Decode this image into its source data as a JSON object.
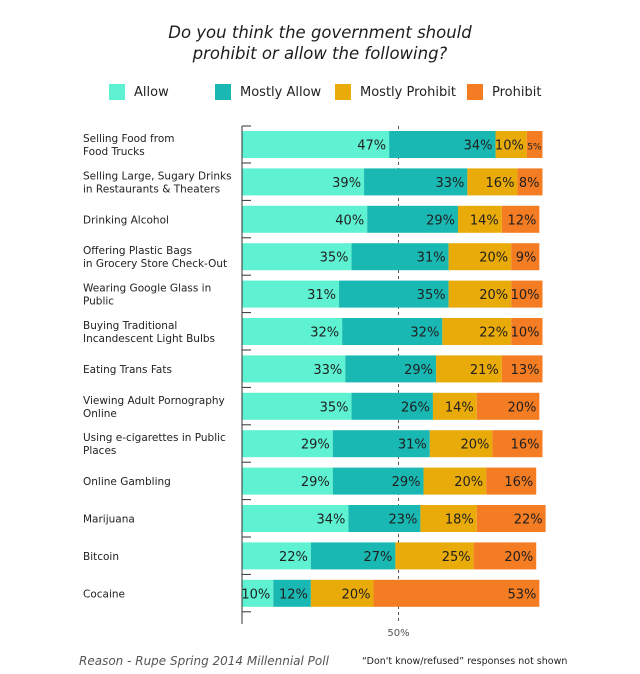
{
  "title_line1": "Do you think the government should",
  "title_line2": "prohibit or allow the following?",
  "footer_source": "Reason - Rupe Spring 2014 Millennial Poll",
  "footer_note": "“Don't know/refused” responses not shown",
  "chart_data": {
    "type": "bar",
    "orientation": "horizontal",
    "stacked": true,
    "title": "Do you think the government should prohibit or allow the following?",
    "xlim": [
      0,
      100
    ],
    "reference_line": {
      "value": 50,
      "label": "50%"
    },
    "legend_position": "top",
    "series": [
      {
        "name": "Allow",
        "color": "#5ef2d2",
        "values": [
          47,
          39,
          40,
          35,
          31,
          32,
          33,
          35,
          29,
          29,
          34,
          22,
          10
        ]
      },
      {
        "name": "Mostly Allow",
        "color": "#1ab8b3",
        "values": [
          34,
          33,
          29,
          31,
          35,
          32,
          29,
          26,
          31,
          29,
          23,
          27,
          12
        ]
      },
      {
        "name": "Mostly Prohibit",
        "color": "#e9ab0a",
        "values": [
          10,
          16,
          14,
          20,
          20,
          22,
          21,
          14,
          20,
          20,
          18,
          25,
          20
        ]
      },
      {
        "name": "Prohibit",
        "color": "#f47c22",
        "values": [
          5,
          8,
          12,
          9,
          10,
          10,
          13,
          20,
          16,
          16,
          22,
          20,
          53
        ]
      }
    ],
    "categories": [
      [
        "Selling Food from",
        "Food Trucks"
      ],
      [
        "Selling Large, Sugary Drinks",
        "in Restaurants & Theaters"
      ],
      [
        "Drinking Alcohol"
      ],
      [
        "Offering Plastic Bags",
        "in Grocery Store Check-Out"
      ],
      [
        "Wearing Google Glass in",
        "Public"
      ],
      [
        "Buying Traditional",
        "Incandescent Light Bulbs"
      ],
      [
        "Eating Trans Fats"
      ],
      [
        "Viewing Adult Pornography",
        "Online"
      ],
      [
        "Using e-cigarettes in Public",
        "Places"
      ],
      [
        "Online Gambling"
      ],
      [
        "Marijuana"
      ],
      [
        "Bitcoin"
      ],
      [
        "Cocaine"
      ]
    ]
  }
}
